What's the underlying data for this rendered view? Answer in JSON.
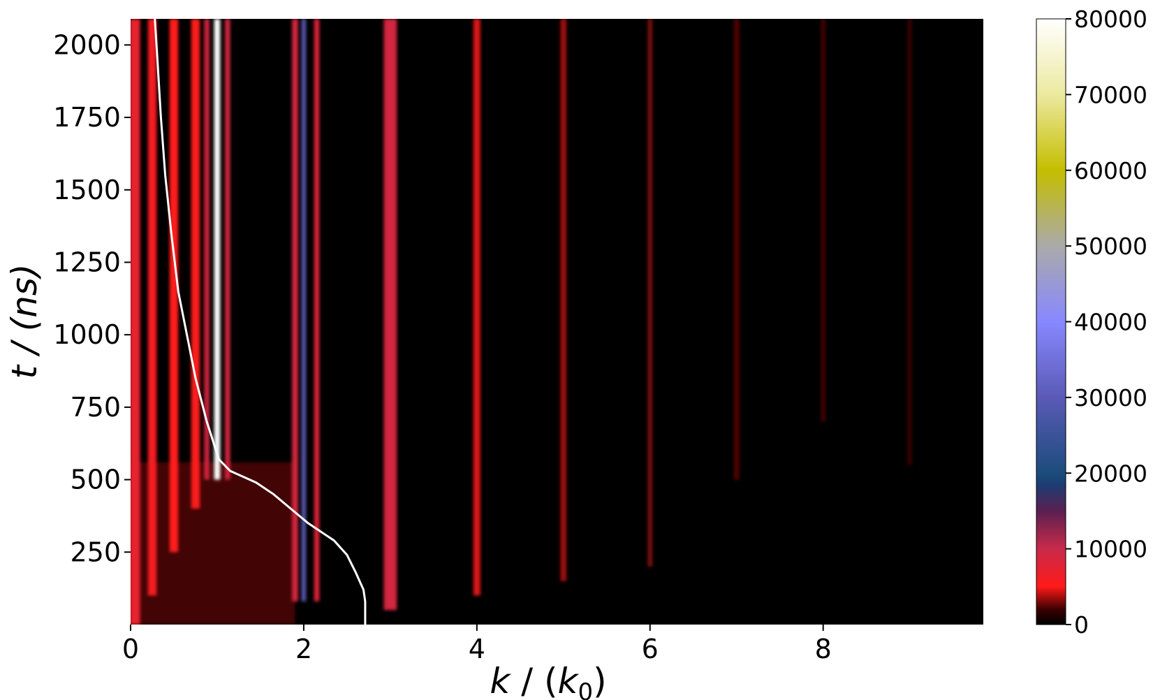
{
  "chart_data": {
    "type": "heatmap",
    "title": "",
    "xlabel_parts": {
      "k": "k",
      "sep": " / (",
      "k0_base": "k",
      "k0_sub": "0",
      "close": ")"
    },
    "ylabel": "t / (ns)",
    "xlim": [
      0,
      9.85
    ],
    "ylim": [
      0,
      2090
    ],
    "x_ticks": [
      0,
      2,
      4,
      6,
      8
    ],
    "x_tick_labels": [
      "0",
      "2",
      "4",
      "6",
      "8"
    ],
    "y_ticks": [
      250,
      500,
      750,
      1000,
      1250,
      1500,
      1750,
      2000
    ],
    "y_tick_labels": [
      "250",
      "500",
      "750",
      "1000",
      "1250",
      "1500",
      "1750",
      "2000"
    ],
    "colorbar": {
      "min": 0,
      "max": 80000,
      "ticks": [
        0,
        10000,
        20000,
        30000,
        40000,
        50000,
        60000,
        70000,
        80000
      ],
      "tick_labels": [
        "0",
        "10000",
        "20000",
        "30000",
        "40000",
        "50000",
        "60000",
        "70000",
        "80000"
      ],
      "stops": [
        {
          "value": 0,
          "color": "#000000"
        },
        {
          "value": 2000,
          "color": "#3a0000"
        },
        {
          "value": 5000,
          "color": "#ff1a1a"
        },
        {
          "value": 10000,
          "color": "#c82a4a"
        },
        {
          "value": 15000,
          "color": "#5a2050"
        },
        {
          "value": 18500,
          "color": "#1c3c73"
        },
        {
          "value": 20000,
          "color": "#1c4c7c"
        },
        {
          "value": 30000,
          "color": "#5a5ab6"
        },
        {
          "value": 40000,
          "color": "#8888ff"
        },
        {
          "value": 50000,
          "color": "#aaaaaa"
        },
        {
          "value": 60000,
          "color": "#c4be00"
        },
        {
          "value": 70000,
          "color": "#ece9a0"
        },
        {
          "value": 80000,
          "color": "#ffffff"
        }
      ]
    },
    "background_color": "#000000",
    "bands": [
      {
        "k": 0.05,
        "width": 0.12,
        "intensity": 7000,
        "t_start": 0
      },
      {
        "k": 0.25,
        "width": 0.1,
        "intensity": 6000,
        "t_start": 100
      },
      {
        "k": 0.5,
        "width": 0.1,
        "intensity": 5000,
        "t_start": 250
      },
      {
        "k": 0.75,
        "width": 0.1,
        "intensity": 5500,
        "t_start": 400
      },
      {
        "k": 0.88,
        "width": 0.06,
        "intensity": 9000,
        "t_start": 500
      },
      {
        "k": 1.0,
        "width": 0.07,
        "intensity": 80000,
        "t_start": 500
      },
      {
        "k": 1.12,
        "width": 0.06,
        "intensity": 9000,
        "t_start": 500
      },
      {
        "k": 1.9,
        "width": 0.07,
        "intensity": 9000,
        "t_start": 80
      },
      {
        "k": 2.0,
        "width": 0.05,
        "intensity": 30000,
        "t_start": 80
      },
      {
        "k": 2.15,
        "width": 0.06,
        "intensity": 8000,
        "t_start": 80
      },
      {
        "k": 3.0,
        "width": 0.15,
        "intensity": 9000,
        "t_start": 50
      },
      {
        "k": 4.0,
        "width": 0.08,
        "intensity": 4500,
        "t_start": 100
      },
      {
        "k": 5.0,
        "width": 0.07,
        "intensity": 3500,
        "t_start": 150
      },
      {
        "k": 6.0,
        "width": 0.06,
        "intensity": 2800,
        "t_start": 200
      },
      {
        "k": 7.0,
        "width": 0.06,
        "intensity": 2400,
        "t_start": 500
      },
      {
        "k": 8.0,
        "width": 0.05,
        "intensity": 2200,
        "t_start": 700
      },
      {
        "k": 9.0,
        "width": 0.05,
        "intensity": 2000,
        "t_start": 550
      }
    ],
    "diffuse_region": {
      "k_max": 1.9,
      "t_max": 560,
      "intensity": 4000
    },
    "line": {
      "color": "#ffffff",
      "x": [
        2.71,
        2.71,
        2.69,
        2.6,
        2.5,
        2.35,
        2.2,
        2.05,
        1.85,
        1.65,
        1.45,
        1.3,
        1.15,
        1.02,
        0.88,
        0.75,
        0.65,
        0.55,
        0.47,
        0.4,
        0.35,
        0.31,
        0.28
      ],
      "y": [
        0,
        80,
        120,
        180,
        240,
        290,
        320,
        350,
        400,
        450,
        490,
        510,
        530,
        570,
        700,
        850,
        1000,
        1150,
        1350,
        1550,
        1750,
        1950,
        2090
      ]
    }
  }
}
